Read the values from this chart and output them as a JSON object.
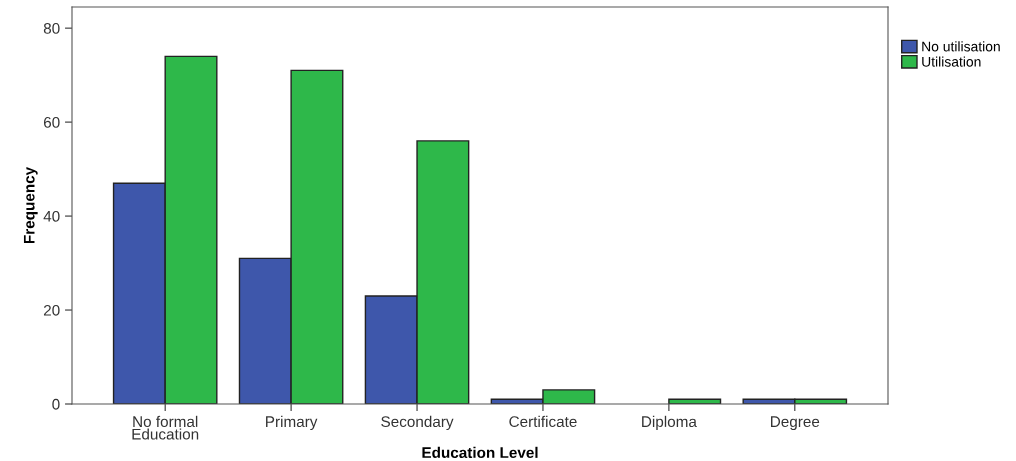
{
  "chart_data": {
    "type": "bar",
    "xlabel": "Education Level",
    "ylabel": "Frequency",
    "categories": [
      "No formal\nEducation",
      "Primary",
      "Secondary",
      "Certificate",
      "Diploma",
      "Degree"
    ],
    "series": [
      {
        "name": "No utilisation",
        "color": "#3e57ab",
        "values": [
          47,
          31,
          23,
          1,
          null,
          1
        ]
      },
      {
        "name": "Utilisation",
        "color": "#2eb84a",
        "values": [
          74,
          71,
          56,
          3,
          1,
          1
        ]
      }
    ],
    "ylim": [
      0,
      84.5
    ],
    "yticks": [
      0,
      20,
      40,
      60,
      80
    ],
    "grid": false,
    "legend": "top right"
  }
}
